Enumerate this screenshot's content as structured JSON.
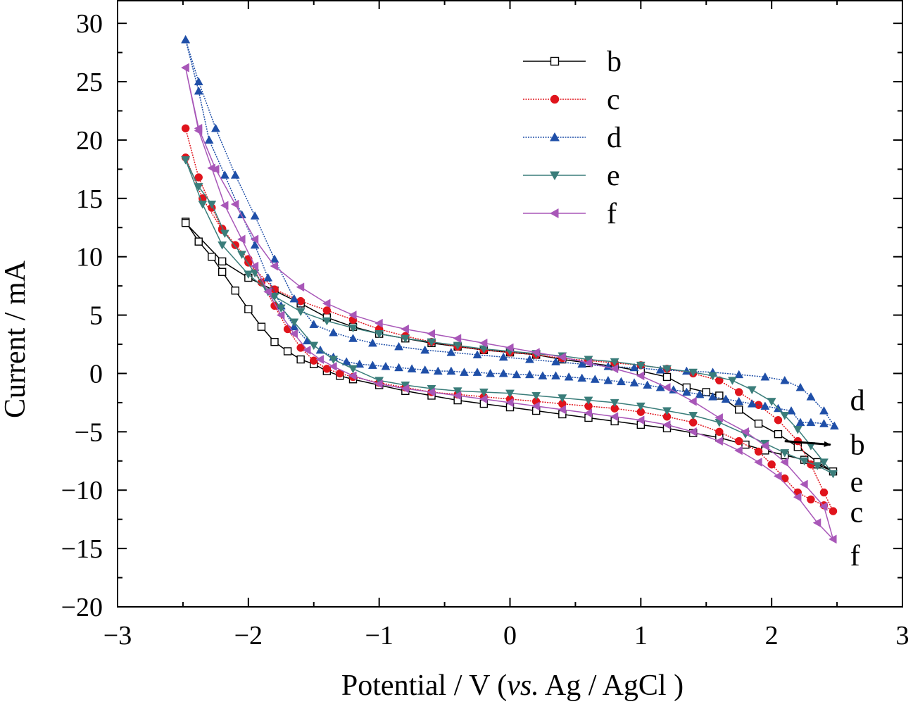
{
  "chart_data": {
    "type": "line",
    "xlabel": "Potential / V (vs. Ag / AgCl )",
    "xlabel_parts": [
      "Potential / V (",
      "vs.",
      " Ag / AgCl )"
    ],
    "ylabel": "Current / mA",
    "xlim": [
      -3,
      3
    ],
    "ylim": [
      -20,
      32
    ],
    "xticks": [
      -3,
      -2,
      -1,
      0,
      1,
      2,
      3
    ],
    "xtick_labels": [
      "−3",
      "−2",
      "−1",
      "0",
      "1",
      "2",
      "3"
    ],
    "yticks": [
      -20,
      -15,
      -10,
      -5,
      0,
      5,
      10,
      15,
      20,
      25,
      30
    ],
    "ytick_labels": [
      "−20",
      "−15",
      "−10",
      "−5",
      "0",
      "5",
      "10",
      "15",
      "20",
      "25",
      "30"
    ],
    "grid": false,
    "legend_position": "top-center",
    "series": [
      {
        "name": "b",
        "color": "#000000",
        "marker": "square-open",
        "dash": "solid",
        "x": [
          -2.48,
          -2.38,
          -2.28,
          -2.2,
          -2.1,
          -2.0,
          -1.9,
          -1.8,
          -1.7,
          -1.6,
          -1.5,
          -1.4,
          -1.3,
          -1.2,
          -1.0,
          -0.8,
          -0.6,
          -0.4,
          -0.2,
          0.0,
          0.2,
          0.4,
          0.6,
          0.8,
          1.0,
          1.2,
          1.4,
          1.6,
          1.8,
          1.95,
          2.1,
          2.25,
          2.35,
          2.47,
          2.35,
          2.2,
          2.05,
          1.9,
          1.75,
          1.6,
          1.5,
          1.35,
          1.2,
          1.0,
          0.8,
          0.6,
          0.4,
          0.2,
          0.0,
          -0.2,
          -0.4,
          -0.6,
          -0.8,
          -1.0,
          -1.2,
          -1.4,
          -1.6,
          -1.8,
          -2.0,
          -2.2,
          -2.48
        ],
        "y": [
          13.0,
          11.3,
          10.0,
          8.7,
          7.1,
          5.5,
          4.0,
          2.7,
          1.9,
          1.2,
          0.8,
          0.2,
          -0.2,
          -0.5,
          -1.0,
          -1.5,
          -1.9,
          -2.3,
          -2.6,
          -2.9,
          -3.2,
          -3.5,
          -3.8,
          -4.1,
          -4.4,
          -4.7,
          -5.1,
          -5.5,
          -6.1,
          -6.6,
          -7.0,
          -7.4,
          -7.8,
          -8.4,
          -7.6,
          -6.3,
          -5.2,
          -4.3,
          -3.1,
          -1.9,
          -1.6,
          -1.2,
          -0.3,
          0.2,
          0.6,
          0.9,
          1.2,
          1.6,
          1.8,
          2.0,
          2.3,
          2.6,
          3.0,
          3.4,
          4.0,
          4.8,
          6.0,
          7.1,
          8.2,
          9.6,
          12.9
        ]
      },
      {
        "name": "c",
        "color": "#e0141c",
        "marker": "circle",
        "dash": "dotted",
        "x": [
          -2.48,
          -2.38,
          -2.28,
          -2.2,
          -2.1,
          -2.0,
          -1.9,
          -1.8,
          -1.7,
          -1.6,
          -1.5,
          -1.4,
          -1.3,
          -1.2,
          -1.0,
          -0.8,
          -0.6,
          -0.4,
          -0.2,
          0.0,
          0.2,
          0.4,
          0.6,
          0.8,
          1.0,
          1.2,
          1.4,
          1.6,
          1.75,
          1.9,
          2.0,
          2.1,
          2.2,
          2.3,
          2.4,
          2.47,
          2.4,
          2.3,
          2.2,
          2.05,
          1.9,
          1.75,
          1.6,
          1.4,
          1.2,
          1.0,
          0.8,
          0.6,
          0.4,
          0.2,
          0.0,
          -0.2,
          -0.4,
          -0.6,
          -0.8,
          -1.0,
          -1.2,
          -1.4,
          -1.6,
          -1.8,
          -2.0,
          -2.2,
          -2.35,
          -2.48
        ],
        "y": [
          21.0,
          16.8,
          14.2,
          12.4,
          11.0,
          9.8,
          7.8,
          5.8,
          3.8,
          2.2,
          1.1,
          0.4,
          0.0,
          -0.3,
          -0.8,
          -1.2,
          -1.6,
          -1.8,
          -2.0,
          -2.2,
          -2.4,
          -2.6,
          -2.8,
          -3.0,
          -3.3,
          -3.7,
          -4.2,
          -5.0,
          -5.8,
          -6.7,
          -7.8,
          -9.0,
          -10.2,
          -10.8,
          -11.3,
          -11.8,
          -10.2,
          -7.8,
          -5.8,
          -4.0,
          -2.7,
          -1.6,
          -0.6,
          0.0,
          0.4,
          0.7,
          0.9,
          1.1,
          1.3,
          1.6,
          1.8,
          2.0,
          2.3,
          2.7,
          3.2,
          3.8,
          4.6,
          5.4,
          6.2,
          7.2,
          9.5,
          12.3,
          15.0,
          18.5
        ]
      },
      {
        "name": "d",
        "color": "#1f4fa8",
        "marker": "triangle-up",
        "dash": "dotted",
        "x": [
          -2.48,
          -2.38,
          -2.3,
          -2.18,
          -2.05,
          -1.95,
          -1.85,
          -1.75,
          -1.65,
          -1.55,
          -1.45,
          -1.35,
          -1.25,
          -1.15,
          -1.05,
          -0.95,
          -0.85,
          -0.75,
          -0.65,
          -0.55,
          -0.45,
          -0.35,
          -0.25,
          -0.15,
          -0.05,
          0.05,
          0.15,
          0.25,
          0.35,
          0.45,
          0.55,
          0.65,
          0.75,
          0.85,
          0.95,
          1.05,
          1.15,
          1.25,
          1.35,
          1.45,
          1.55,
          1.65,
          1.75,
          1.85,
          1.95,
          2.05,
          2.15,
          2.22,
          2.3,
          2.4,
          2.48,
          2.4,
          2.3,
          2.22,
          2.1,
          1.95,
          1.75,
          1.55,
          1.35,
          1.15,
          0.95,
          0.75,
          0.55,
          0.35,
          0.15,
          -0.05,
          -0.25,
          -0.45,
          -0.65,
          -0.85,
          -1.05,
          -1.2,
          -1.35,
          -1.5,
          -1.65,
          -1.8,
          -1.95,
          -2.1,
          -2.25,
          -2.38,
          -2.48
        ],
        "y": [
          28.6,
          24.2,
          20.0,
          17.0,
          13.6,
          11.0,
          8.2,
          5.8,
          4.0,
          2.8,
          2.0,
          1.4,
          1.0,
          0.8,
          0.7,
          0.6,
          0.5,
          0.4,
          0.3,
          0.2,
          0.2,
          0.1,
          0.1,
          0.0,
          0.0,
          -0.1,
          -0.1,
          -0.2,
          -0.2,
          -0.3,
          -0.4,
          -0.5,
          -0.6,
          -0.7,
          -0.8,
          -1.0,
          -1.2,
          -1.4,
          -1.6,
          -1.8,
          -2.0,
          -2.2,
          -2.4,
          -2.6,
          -2.8,
          -3.0,
          -3.2,
          -4.2,
          -4.2,
          -4.3,
          -4.5,
          -3.2,
          -2.0,
          -1.2,
          -0.6,
          -0.3,
          -0.1,
          0.1,
          0.2,
          0.3,
          0.5,
          0.6,
          0.8,
          1.0,
          1.2,
          1.4,
          1.6,
          1.8,
          2.0,
          2.3,
          2.6,
          3.0,
          3.5,
          4.2,
          6.4,
          9.8,
          13.5,
          17.0,
          21.0,
          25.0,
          28.6
        ]
      },
      {
        "name": "e",
        "color": "#3a7d7a",
        "marker": "triangle-down",
        "dash": "solid",
        "x": [
          -2.48,
          -2.38,
          -2.28,
          -2.18,
          -2.05,
          -1.95,
          -1.85,
          -1.75,
          -1.65,
          -1.5,
          -1.35,
          -1.2,
          -1.0,
          -0.8,
          -0.6,
          -0.4,
          -0.2,
          0.0,
          0.2,
          0.4,
          0.6,
          0.8,
          1.0,
          1.2,
          1.4,
          1.6,
          1.8,
          1.95,
          2.1,
          2.25,
          2.35,
          2.47,
          2.4,
          2.3,
          2.2,
          2.1,
          2.0,
          1.85,
          1.7,
          1.55,
          1.4,
          1.2,
          1.0,
          0.8,
          0.6,
          0.4,
          0.2,
          0.0,
          -0.2,
          -0.4,
          -0.6,
          -0.8,
          -1.0,
          -1.2,
          -1.4,
          -1.6,
          -1.8,
          -2.0,
          -2.2,
          -2.35,
          -2.48
        ],
        "y": [
          18.3,
          16.0,
          14.5,
          12.0,
          10.2,
          8.6,
          7.0,
          5.6,
          4.4,
          2.4,
          1.2,
          0.4,
          -0.6,
          -1.0,
          -1.3,
          -1.5,
          -1.6,
          -1.7,
          -1.9,
          -2.1,
          -2.3,
          -2.5,
          -2.8,
          -3.2,
          -3.6,
          -4.2,
          -5.2,
          -6.0,
          -6.8,
          -7.5,
          -7.9,
          -8.6,
          -7.6,
          -6.2,
          -4.8,
          -3.6,
          -2.4,
          -1.4,
          -0.6,
          -0.2,
          0.1,
          0.4,
          0.7,
          1.0,
          1.2,
          1.5,
          1.7,
          1.9,
          2.1,
          2.4,
          2.7,
          3.0,
          3.4,
          3.9,
          4.5,
          5.3,
          6.6,
          8.5,
          11.0,
          14.5,
          18.3
        ]
      },
      {
        "name": "f",
        "color": "#a857b8",
        "marker": "triangle-left",
        "dash": "solid",
        "x": [
          -2.48,
          -2.38,
          -2.28,
          -2.18,
          -2.05,
          -1.95,
          -1.85,
          -1.75,
          -1.65,
          -1.55,
          -1.45,
          -1.35,
          -1.2,
          -1.0,
          -0.8,
          -0.6,
          -0.4,
          -0.2,
          0.0,
          0.2,
          0.4,
          0.6,
          0.8,
          1.0,
          1.2,
          1.4,
          1.6,
          1.75,
          1.9,
          2.05,
          2.2,
          2.35,
          2.47,
          2.4,
          2.25,
          2.1,
          1.95,
          1.8,
          1.6,
          1.4,
          1.2,
          1.0,
          0.8,
          0.6,
          0.4,
          0.2,
          0.0,
          -0.2,
          -0.4,
          -0.6,
          -0.8,
          -1.0,
          -1.2,
          -1.4,
          -1.6,
          -1.8,
          -1.95,
          -2.1,
          -2.25,
          -2.38,
          -2.48
        ],
        "y": [
          26.2,
          20.8,
          17.6,
          14.4,
          11.5,
          9.2,
          7.0,
          5.0,
          3.4,
          2.0,
          1.2,
          0.6,
          -0.2,
          -0.9,
          -1.3,
          -1.6,
          -1.9,
          -2.2,
          -2.5,
          -2.8,
          -3.1,
          -3.4,
          -3.7,
          -4.0,
          -4.4,
          -5.0,
          -5.8,
          -6.6,
          -7.6,
          -8.8,
          -10.6,
          -12.8,
          -14.2,
          -11.4,
          -9.5,
          -7.6,
          -6.2,
          -5.0,
          -3.8,
          -2.4,
          -1.2,
          -0.2,
          0.4,
          0.9,
          1.4,
          1.8,
          2.2,
          2.6,
          3.0,
          3.4,
          3.8,
          4.3,
          5.0,
          6.0,
          7.4,
          9.2,
          11.5,
          14.5,
          17.5,
          21.0,
          26.2
        ]
      }
    ],
    "annotations": [
      {
        "text": "d",
        "x": 2.6,
        "y": -2.3
      },
      {
        "text": "b",
        "x": 2.6,
        "y": -6.1
      },
      {
        "text": "e",
        "x": 2.6,
        "y": -9.3
      },
      {
        "text": "c",
        "x": 2.6,
        "y": -11.9
      },
      {
        "text": "f",
        "x": 2.6,
        "y": -15.6
      }
    ],
    "arrow": {
      "from": [
        2.1,
        -5.8
      ],
      "to": [
        2.45,
        -6.1
      ]
    }
  }
}
